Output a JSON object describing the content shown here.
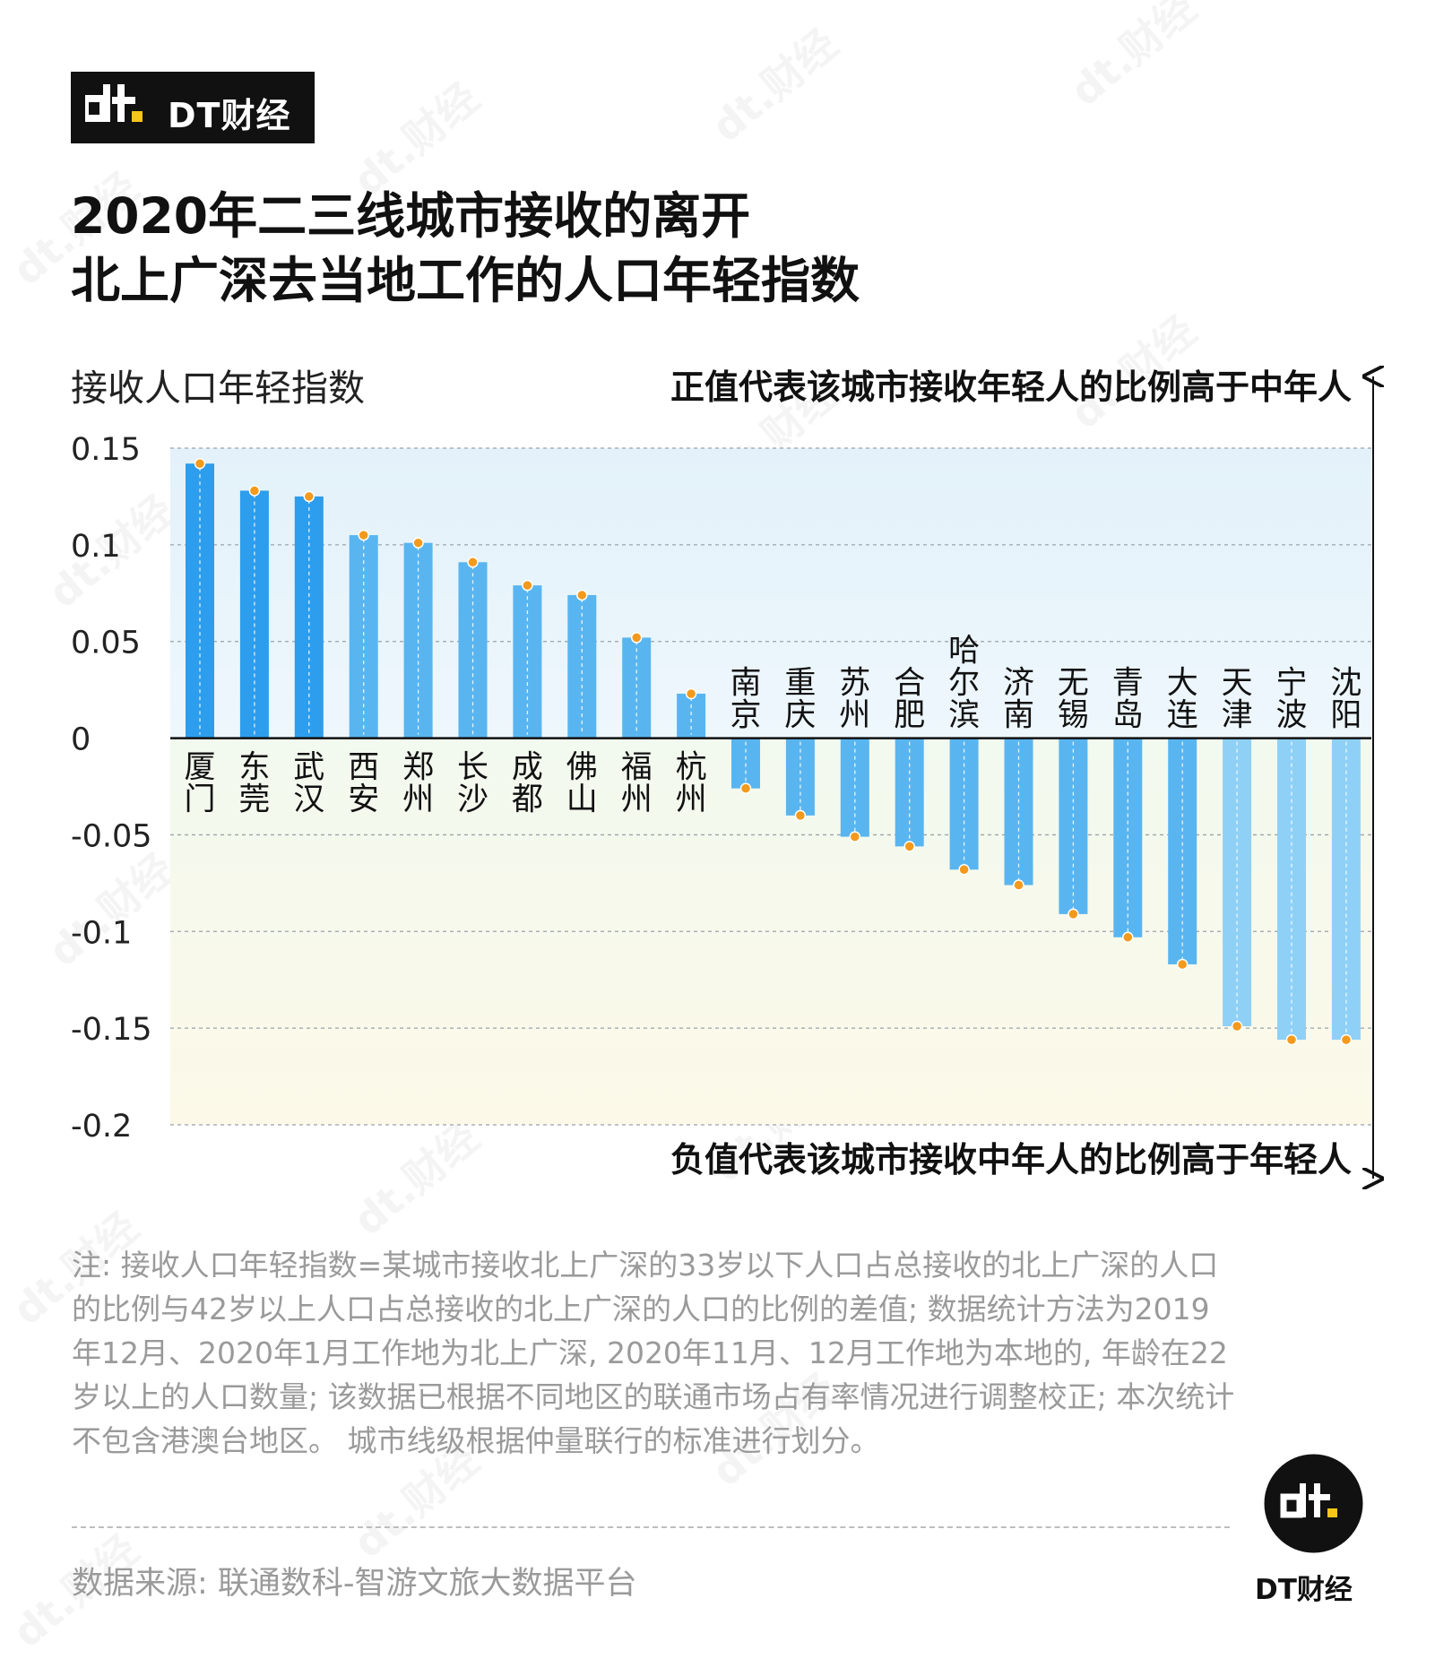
{
  "brand": {
    "logo_text": "DT财经",
    "badge_text": "DT财经",
    "watermark_text": "dt.财经"
  },
  "title_lines": [
    "2020年二三线城市接收的离开",
    "北上广深去当地工作的人口年轻指数"
  ],
  "note": "注: 接收人口年轻指数=某城市接收北上广深的33岁以下人口占总接收的北上广深的人口的比例与42岁以上人口占总接收的北上广深的人口的比例的差值; 数据统计方法为2019年12月、2020年1月工作地为北上广深, 2020年11月、12月工作地为本地的, 年龄在22岁以上的人口数量; 该数据已根据不同地区的联通市场占有率情况进行调整校正; 本次统计不包含港澳台地区。 城市线级根据仲量联行的标准进行划分。",
  "source": "数据来源: 联通数科-智游文旅大数据平台",
  "colors": {
    "bar_dark": "#2d9ded",
    "bar_mid": "#59b5f0",
    "bar_light": "#8fd0f7",
    "dot": "#f39a1d",
    "positive_bg": "#e6f3fb",
    "negative_bg": "#fbf8e6"
  },
  "chart_data": {
    "type": "bar",
    "ylabel": "接收人口年轻指数",
    "positive_annotation": "正值代表该城市接收年轻人的比例高于中年人",
    "negative_annotation": "负值代表该城市接收中年人的比例高于年轻人",
    "ylim": [
      -0.2,
      0.15
    ],
    "yticks": [
      0.15,
      0.1,
      0.05,
      0,
      -0.05,
      -0.1,
      -0.15,
      -0.2
    ],
    "ytick_labels": [
      "0.15",
      "0.1",
      "0.05",
      "0",
      "-0.05",
      "-0.1",
      "-0.15",
      "-0.2"
    ],
    "grid": true,
    "categories": [
      "厦门",
      "东莞",
      "武汉",
      "西安",
      "郑州",
      "长沙",
      "成都",
      "佛山",
      "福州",
      "杭州",
      "南京",
      "重庆",
      "苏州",
      "合肥",
      "哈尔滨",
      "济南",
      "无锡",
      "青岛",
      "大连",
      "天津",
      "宁波",
      "沈阳"
    ],
    "values": [
      0.142,
      0.128,
      0.125,
      0.105,
      0.101,
      0.091,
      0.079,
      0.074,
      0.052,
      0.023,
      -0.026,
      -0.04,
      -0.051,
      -0.056,
      -0.068,
      -0.076,
      -0.091,
      -0.103,
      -0.117,
      -0.149,
      -0.156,
      -0.156
    ]
  }
}
